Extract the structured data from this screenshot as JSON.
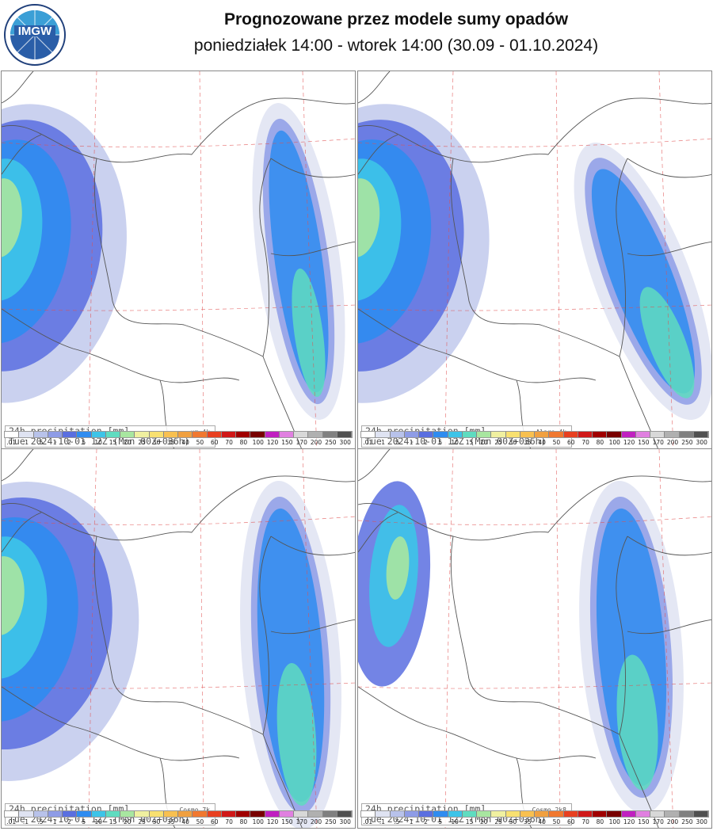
{
  "header": {
    "logo_text": "IMGW",
    "title": "Prognozowane przez modele sumy opadów",
    "subtitle": "poniedziałek 14:00 - wtorek 14:00 (30.09 - 01.10.2024)"
  },
  "panels": [
    {
      "line1": "24h precipitation  [mm]",
      "model": "um 4k",
      "line2": "Tue 2024-10-01 12Z (Mon 00Z+036h)"
    },
    {
      "line1": "24h precipitation  [mm]",
      "model": "Alaro 4k",
      "line2": "Tue 2024-10-01 12Z (Mon 00Z+036h)"
    },
    {
      "line1": "24h precipitation  [mm]",
      "model": "Cosmo 7k",
      "line2": "Tue 2024-10-01 12Z (Mon 00Z+036h)"
    },
    {
      "line1": "24h precipitation  [mm]",
      "model": "Cosmo 2k8",
      "line2": "Tue 2024-10-01 12Z (Mon 00Z+036h)"
    }
  ],
  "scale": {
    "labels": [
      ".01",
      ".1",
      ".5",
      "1",
      "2",
      "5",
      "10",
      "15",
      "20",
      "25",
      "30",
      "35",
      "40",
      "50",
      "60",
      "70",
      "80",
      "100",
      "120",
      "150",
      "170",
      "200",
      "250",
      "300"
    ],
    "colors": [
      "#ffffff",
      "#dfe3f2",
      "#b8c2ea",
      "#8e9ce6",
      "#5a6fe0",
      "#2f8cf0",
      "#3dc4e8",
      "#5fdcc0",
      "#a8e6a0",
      "#f0f0a0",
      "#f8e070",
      "#f8c050",
      "#f0a040",
      "#f07830",
      "#e84020",
      "#d01818",
      "#a00000",
      "#780000",
      "#c020c0",
      "#e080e0",
      "#d8d8d8",
      "#b0b0b0",
      "#808080",
      "#505050"
    ]
  },
  "chart_data": {
    "type": "heatmap",
    "title": "Prognozowane przez modele sumy opadów",
    "subtitle": "poniedziałek 14:00 - wtorek 14:00 (30.09 - 01.10.2024)",
    "variable": "24h precipitation [mm]",
    "valid": "Tue 2024-10-01 12Z (Mon 00Z+036h)",
    "models": [
      "um 4k",
      "Alaro 4k",
      "Cosmo 7k",
      "Cosmo 2k8"
    ]
  }
}
